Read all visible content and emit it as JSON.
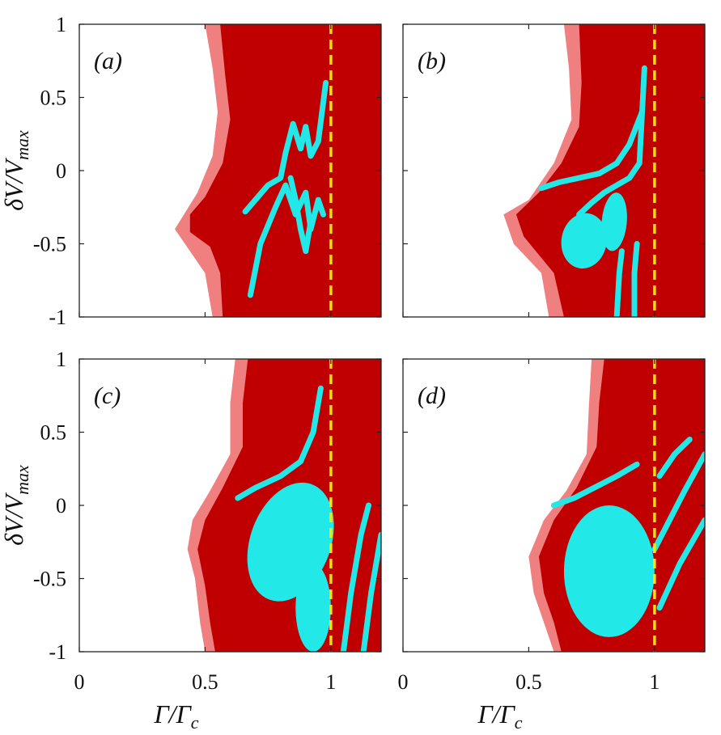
{
  "chart_data": [
    {
      "type": "heatmap",
      "panel_label": "(a)",
      "xlabel": "",
      "ylabel": "δV/V_max",
      "xlim": [
        0,
        1.2
      ],
      "ylim": [
        -1,
        1
      ],
      "xticks": [
        0,
        0.5,
        1
      ],
      "yticks": [
        -1,
        -0.5,
        0,
        0.5,
        1
      ],
      "xtick_labels": [
        "",
        "",
        ""
      ],
      "ytick_labels": [
        "-1",
        "-0.5",
        "0",
        "0.5",
        "1"
      ],
      "divider_x": 1,
      "colors": {
        "light": "#f08080",
        "dark": "#c00000",
        "highlight": "#22e8e8",
        "divider": "#f7e600"
      },
      "light_boundary": [
        [
          0.5,
          1
        ],
        [
          0.53,
          0.7
        ],
        [
          0.55,
          0.4
        ],
        [
          0.53,
          0.1
        ],
        [
          0.47,
          -0.15
        ],
        [
          0.38,
          -0.4
        ],
        [
          0.44,
          -0.55
        ],
        [
          0.5,
          -0.7
        ],
        [
          0.53,
          -1
        ],
        [
          1.2,
          -1
        ],
        [
          1.2,
          1
        ]
      ],
      "dark_boundary": [
        [
          0.56,
          1
        ],
        [
          0.58,
          0.65
        ],
        [
          0.6,
          0.35
        ],
        [
          0.57,
          0.05
        ],
        [
          0.5,
          -0.18
        ],
        [
          0.44,
          -0.3
        ],
        [
          0.44,
          -0.42
        ],
        [
          0.52,
          -0.52
        ],
        [
          0.56,
          -0.7
        ],
        [
          0.57,
          -1
        ],
        [
          1.2,
          -1
        ],
        [
          1.2,
          1
        ]
      ],
      "highlight_curves": [
        [
          [
            0.66,
            -0.28
          ],
          [
            0.7,
            -0.2
          ],
          [
            0.75,
            -0.1
          ],
          [
            0.8,
            -0.05
          ],
          [
            0.82,
            0.12
          ],
          [
            0.85,
            0.32
          ],
          [
            0.88,
            0.15
          ],
          [
            0.9,
            0.3
          ],
          [
            0.92,
            0.1
          ],
          [
            0.95,
            0.2
          ],
          [
            0.98,
            0.6
          ]
        ],
        [
          [
            0.68,
            -0.85
          ],
          [
            0.72,
            -0.5
          ],
          [
            0.78,
            -0.25
          ],
          [
            0.82,
            -0.1
          ],
          [
            0.86,
            -0.3
          ],
          [
            0.9,
            -0.15
          ],
          [
            0.92,
            -0.4
          ],
          [
            0.95,
            -0.2
          ],
          [
            0.97,
            -0.3
          ]
        ],
        [
          [
            0.84,
            -0.05
          ],
          [
            0.86,
            -0.2
          ],
          [
            0.88,
            -0.4
          ],
          [
            0.9,
            -0.55
          ],
          [
            0.92,
            -0.35
          ]
        ]
      ],
      "highlight_blobs": []
    },
    {
      "type": "heatmap",
      "panel_label": "(b)",
      "xlabel": "",
      "ylabel": "",
      "xlim": [
        0,
        1.2
      ],
      "ylim": [
        -1,
        1
      ],
      "xticks": [
        0,
        0.5,
        1
      ],
      "yticks": [
        -1,
        -0.5,
        0,
        0.5,
        1
      ],
      "xtick_labels": [
        "",
        "",
        ""
      ],
      "ytick_labels": [
        "",
        "",
        "",
        "",
        ""
      ],
      "divider_x": 1,
      "colors": {
        "light": "#f08080",
        "dark": "#c00000",
        "highlight": "#22e8e8",
        "divider": "#f7e600"
      },
      "light_boundary": [
        [
          0.64,
          1
        ],
        [
          0.66,
          0.7
        ],
        [
          0.67,
          0.35
        ],
        [
          0.6,
          0.05
        ],
        [
          0.5,
          -0.2
        ],
        [
          0.4,
          -0.3
        ],
        [
          0.44,
          -0.5
        ],
        [
          0.55,
          -0.7
        ],
        [
          0.58,
          -1
        ],
        [
          1.2,
          -1
        ],
        [
          1.2,
          1
        ]
      ],
      "dark_boundary": [
        [
          0.7,
          1
        ],
        [
          0.71,
          0.6
        ],
        [
          0.7,
          0.3
        ],
        [
          0.63,
          0.05
        ],
        [
          0.54,
          -0.15
        ],
        [
          0.45,
          -0.3
        ],
        [
          0.48,
          -0.45
        ],
        [
          0.6,
          -0.7
        ],
        [
          0.64,
          -1
        ],
        [
          1.2,
          -1
        ],
        [
          1.2,
          1
        ]
      ],
      "highlight_curves": [
        [
          [
            0.55,
            -0.12
          ],
          [
            0.62,
            -0.08
          ],
          [
            0.7,
            -0.05
          ],
          [
            0.78,
            -0.02
          ],
          [
            0.85,
            0.05
          ],
          [
            0.9,
            0.18
          ],
          [
            0.95,
            0.4
          ]
        ],
        [
          [
            0.7,
            -0.3
          ],
          [
            0.75,
            -0.22
          ],
          [
            0.8,
            -0.15
          ],
          [
            0.85,
            -0.1
          ],
          [
            0.9,
            -0.05
          ],
          [
            0.94,
            0.05
          ],
          [
            0.96,
            0.7
          ]
        ],
        [
          [
            0.85,
            -1
          ],
          [
            0.86,
            -0.7
          ],
          [
            0.87,
            -0.55
          ]
        ],
        [
          [
            0.92,
            -1
          ],
          [
            0.92,
            -0.7
          ],
          [
            0.93,
            -0.5
          ]
        ]
      ],
      "highlight_blobs": [
        {
          "cx": 0.72,
          "cy": -0.48,
          "rx": 0.09,
          "ry": 0.19,
          "rot": 10
        },
        {
          "cx": 0.84,
          "cy": -0.35,
          "rx": 0.05,
          "ry": 0.2,
          "rot": 5
        }
      ]
    },
    {
      "type": "heatmap",
      "panel_label": "(c)",
      "xlabel": "Γ/Γ_c",
      "ylabel": "δV/V_max",
      "xlim": [
        0,
        1.2
      ],
      "ylim": [
        -1,
        1
      ],
      "xticks": [
        0,
        0.5,
        1
      ],
      "yticks": [
        -1,
        -0.5,
        0,
        0.5,
        1
      ],
      "xtick_labels": [
        "0",
        "0.5",
        "1"
      ],
      "ytick_labels": [
        "-1",
        "-0.5",
        "0",
        "0.5",
        "1"
      ],
      "divider_x": 1,
      "colors": {
        "light": "#f08080",
        "dark": "#c00000",
        "highlight": "#22e8e8",
        "divider": "#f7e600"
      },
      "light_boundary": [
        [
          0.62,
          1
        ],
        [
          0.6,
          0.7
        ],
        [
          0.6,
          0.35
        ],
        [
          0.52,
          0.1
        ],
        [
          0.45,
          -0.1
        ],
        [
          0.43,
          -0.3
        ],
        [
          0.46,
          -0.5
        ],
        [
          0.48,
          -0.8
        ],
        [
          0.5,
          -1
        ],
        [
          1.2,
          -1
        ],
        [
          1.2,
          1
        ]
      ],
      "dark_boundary": [
        [
          0.67,
          1
        ],
        [
          0.65,
          0.7
        ],
        [
          0.65,
          0.4
        ],
        [
          0.57,
          0.12
        ],
        [
          0.5,
          -0.1
        ],
        [
          0.47,
          -0.3
        ],
        [
          0.5,
          -0.55
        ],
        [
          0.52,
          -0.8
        ],
        [
          0.54,
          -1
        ],
        [
          1.2,
          -1
        ],
        [
          1.2,
          1
        ]
      ],
      "highlight_curves": [
        [
          [
            0.63,
            0.05
          ],
          [
            0.7,
            0.12
          ],
          [
            0.8,
            0.2
          ],
          [
            0.88,
            0.3
          ],
          [
            0.93,
            0.5
          ],
          [
            0.96,
            0.8
          ]
        ],
        [
          [
            1.05,
            -1
          ],
          [
            1.08,
            -0.6
          ],
          [
            1.12,
            -0.2
          ],
          [
            1.15,
            0.0
          ]
        ],
        [
          [
            1.13,
            -1
          ],
          [
            1.16,
            -0.6
          ],
          [
            1.2,
            -0.2
          ]
        ]
      ],
      "highlight_blobs": [
        {
          "cx": 0.84,
          "cy": -0.25,
          "rx": 0.16,
          "ry": 0.42,
          "rot": 20
        },
        {
          "cx": 0.93,
          "cy": -0.7,
          "rx": 0.07,
          "ry": 0.3,
          "rot": 0
        }
      ]
    },
    {
      "type": "heatmap",
      "panel_label": "(d)",
      "xlabel": "Γ/Γ_c",
      "ylabel": "",
      "xlim": [
        0,
        1.2
      ],
      "ylim": [
        -1,
        1
      ],
      "xticks": [
        0,
        0.5,
        1
      ],
      "yticks": [
        -1,
        -0.5,
        0,
        0.5,
        1
      ],
      "xtick_labels": [
        "0",
        "0.5",
        "1"
      ],
      "ytick_labels": [
        "",
        "",
        "",
        "",
        ""
      ],
      "divider_x": 1,
      "colors": {
        "light": "#f08080",
        "dark": "#c00000",
        "highlight": "#22e8e8",
        "divider": "#f7e600"
      },
      "light_boundary": [
        [
          0.75,
          1
        ],
        [
          0.74,
          0.7
        ],
        [
          0.73,
          0.35
        ],
        [
          0.65,
          0.1
        ],
        [
          0.56,
          -0.1
        ],
        [
          0.5,
          -0.35
        ],
        [
          0.52,
          -0.6
        ],
        [
          0.56,
          -0.8
        ],
        [
          0.6,
          -1
        ],
        [
          1.2,
          -1
        ],
        [
          1.2,
          1
        ]
      ],
      "dark_boundary": [
        [
          0.8,
          1
        ],
        [
          0.78,
          0.7
        ],
        [
          0.77,
          0.4
        ],
        [
          0.69,
          0.12
        ],
        [
          0.6,
          -0.1
        ],
        [
          0.54,
          -0.35
        ],
        [
          0.56,
          -0.6
        ],
        [
          0.6,
          -0.8
        ],
        [
          0.63,
          -1
        ],
        [
          1.2,
          -1
        ],
        [
          1.2,
          1
        ]
      ],
      "highlight_curves": [
        [
          [
            0.6,
            0.0
          ],
          [
            0.68,
            0.05
          ],
          [
            0.76,
            0.12
          ],
          [
            0.85,
            0.2
          ],
          [
            0.93,
            0.28
          ]
        ],
        [
          [
            1.02,
            0.2
          ],
          [
            1.08,
            0.35
          ],
          [
            1.14,
            0.45
          ]
        ],
        [
          [
            1.0,
            -0.3
          ],
          [
            1.06,
            -0.1
          ],
          [
            1.12,
            0.1
          ],
          [
            1.2,
            0.35
          ]
        ],
        [
          [
            1.02,
            -0.7
          ],
          [
            1.1,
            -0.4
          ],
          [
            1.2,
            -0.1
          ]
        ]
      ],
      "highlight_blobs": [
        {
          "cx": 0.82,
          "cy": -0.45,
          "rx": 0.18,
          "ry": 0.45,
          "rot": 0
        }
      ]
    }
  ]
}
